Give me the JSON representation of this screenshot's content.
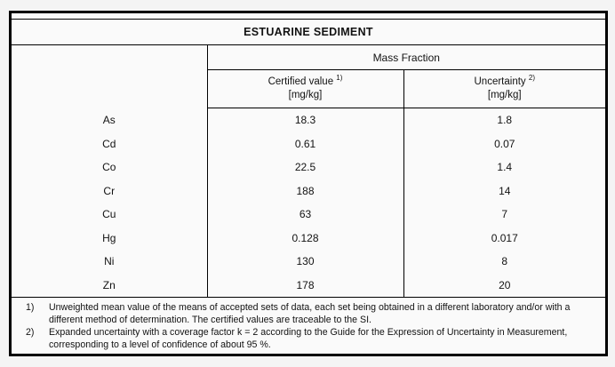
{
  "table": {
    "title": "ESTUARINE SEDIMENT",
    "header": {
      "group": "Mass Fraction",
      "columns": [
        {
          "label": "Certified value",
          "sup": "1)",
          "unit": "[mg/kg]"
        },
        {
          "label": "Uncertainty",
          "sup": "2)",
          "unit": "[mg/kg]"
        }
      ]
    },
    "rows": [
      {
        "element": "As",
        "certified": "18.3",
        "uncertainty": "1.8"
      },
      {
        "element": "Cd",
        "certified": "0.61",
        "uncertainty": "0.07"
      },
      {
        "element": "Co",
        "certified": "22.5",
        "uncertainty": "1.4"
      },
      {
        "element": "Cr",
        "certified": "188",
        "uncertainty": "14"
      },
      {
        "element": "Cu",
        "certified": "63",
        "uncertainty": "7"
      },
      {
        "element": "Hg",
        "certified": "0.128",
        "uncertainty": "0.017"
      },
      {
        "element": "Ni",
        "certified": "130",
        "uncertainty": "8"
      },
      {
        "element": "Zn",
        "certified": "178",
        "uncertainty": "20"
      }
    ],
    "footnotes": [
      {
        "marker": "1)",
        "text": "Unweighted mean value of the means of accepted sets of data, each set being obtained in a different laboratory and/or with a different method of determination. The certified values are traceable to the SI."
      },
      {
        "marker": "2)",
        "text": "Expanded uncertainty with a coverage factor k = 2 according to the Guide for the Expression of Uncertainty in Measurement, corresponding to a level of confidence of about 95 %."
      }
    ]
  },
  "colors": {
    "border": "#000000",
    "page_background": "#f4f4f4",
    "table_background": "#fafafa",
    "text": "#121212"
  }
}
